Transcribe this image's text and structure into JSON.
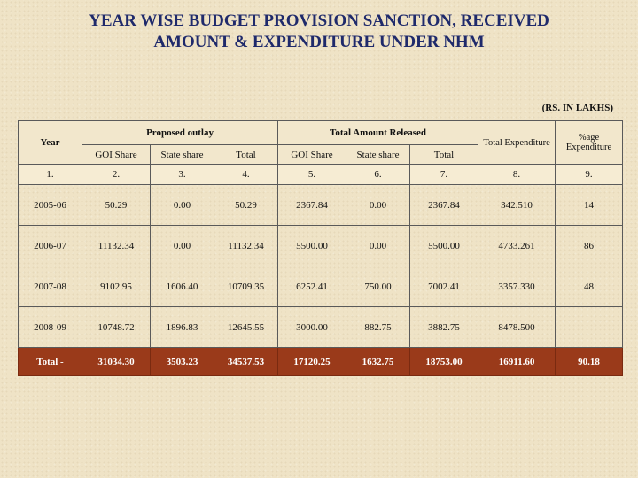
{
  "title": {
    "line1": "YEAR WISE BUDGET PROVISION SANCTION, RECEIVED",
    "line2": "AMOUNT & EXPENDITURE UNDER NHM"
  },
  "units": "(RS. IN LAKHS)",
  "header": {
    "year": "Year",
    "proposed_outlay": "Proposed outlay",
    "total_amount_released": "Total Amount Released",
    "total_expenditure": "Total Expenditure",
    "pct_expenditure": "%age Expenditure",
    "sub": [
      "GOI Share",
      "State share",
      "Total",
      "GOI Share",
      "State share",
      "Total"
    ]
  },
  "numbering": [
    "1.",
    "2.",
    "3.",
    "4.",
    "5.",
    "6.",
    "7.",
    "8.",
    "9."
  ],
  "rows": [
    [
      "2005-06",
      "50.29",
      "0.00",
      "50.29",
      "2367.84",
      "0.00",
      "2367.84",
      "342.510",
      "14"
    ],
    [
      "2006-07",
      "11132.34",
      "0.00",
      "11132.34",
      "5500.00",
      "0.00",
      "5500.00",
      "4733.261",
      "86"
    ],
    [
      "2007-08",
      "9102.95",
      "1606.40",
      "10709.35",
      "6252.41",
      "750.00",
      "7002.41",
      "3357.330",
      "48"
    ],
    [
      "2008-09",
      "10748.72",
      "1896.83",
      "12645.55",
      "3000.00",
      "882.75",
      "3882.75",
      "8478.500",
      "—"
    ]
  ],
  "total": [
    "Total -",
    "31034.30",
    "3503.23",
    "34537.53",
    "17120.25",
    "1632.75",
    "18753.00",
    "16911.60",
    "90.18"
  ]
}
